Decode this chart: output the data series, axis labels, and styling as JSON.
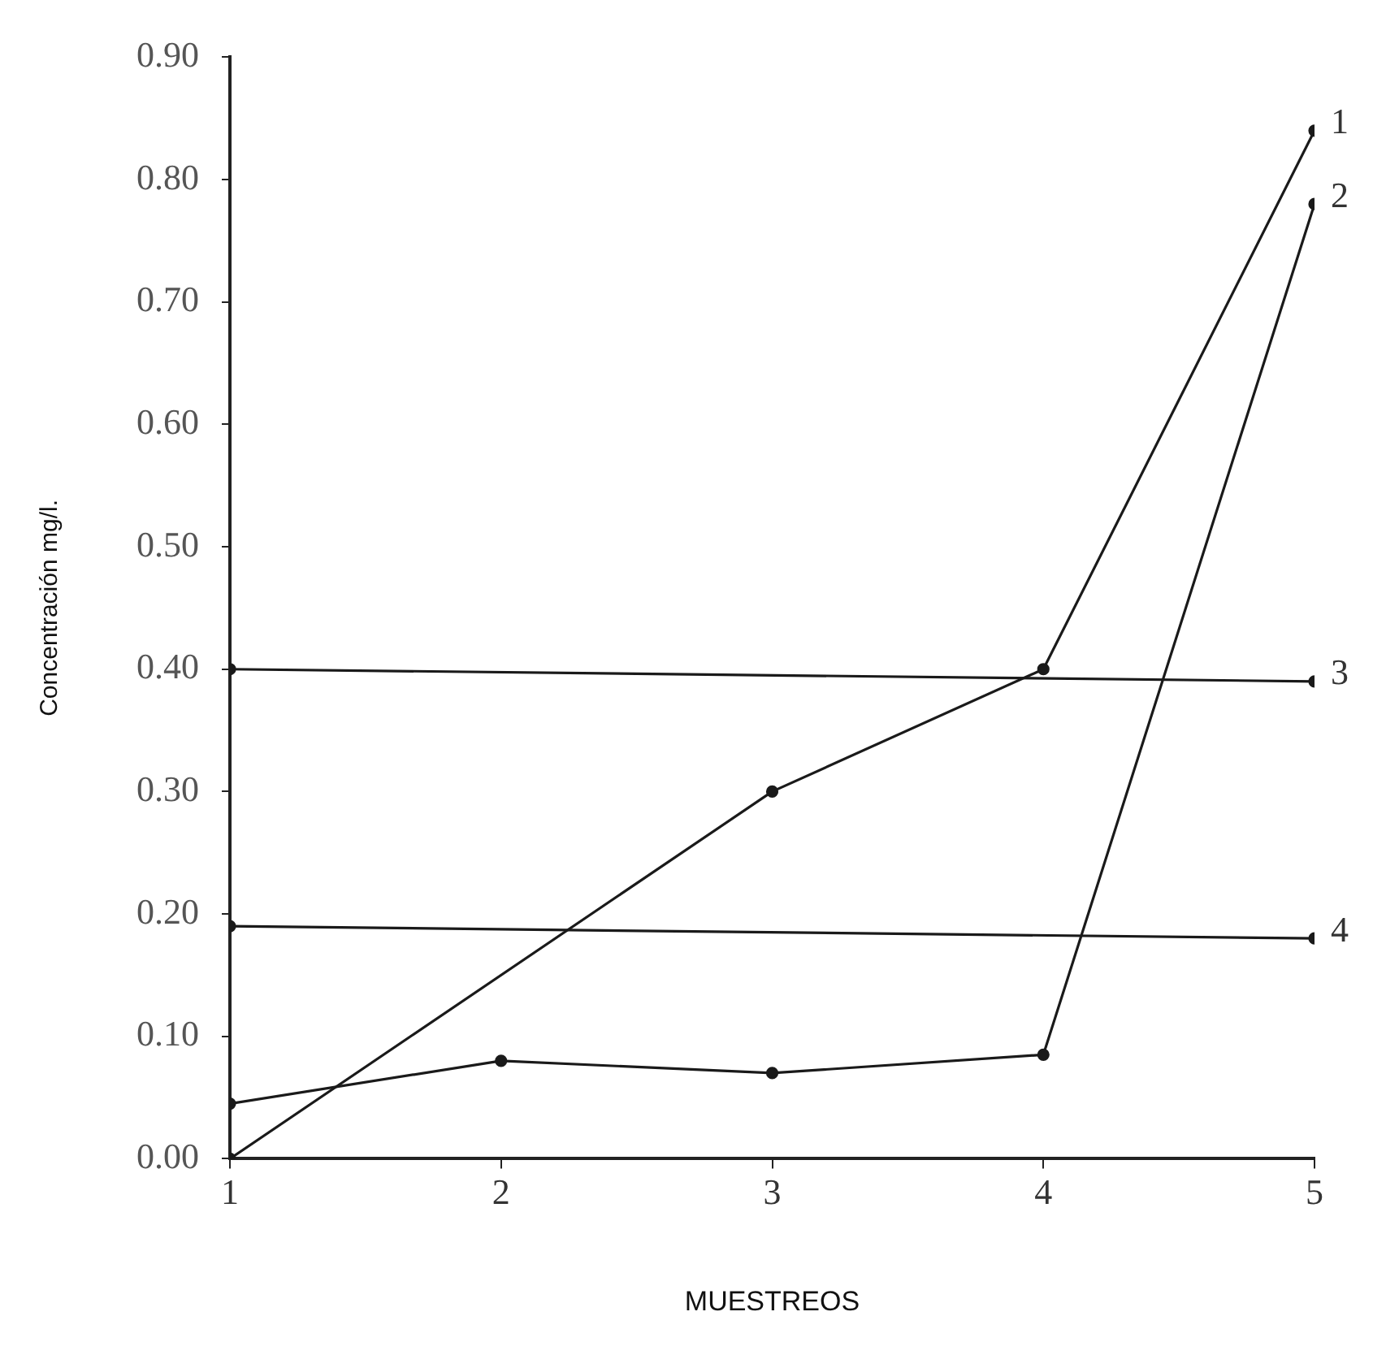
{
  "chart_data": {
    "type": "line",
    "xlabel": "MUESTREOS",
    "ylabel": "Concentración mg/l.",
    "xlim": [
      1,
      5
    ],
    "xticks": [
      1,
      2,
      3,
      4,
      5
    ],
    "ylim": [
      0,
      0.9
    ],
    "yticks": [
      {
        "value": 0,
        "label": "0.00"
      },
      {
        "value": 0.1,
        "label": "0.10"
      },
      {
        "value": 0.2,
        "label": "0.20"
      },
      {
        "value": 0.3,
        "label": "0.30"
      },
      {
        "value": 0.4,
        "label": "0.40"
      },
      {
        "value": 0.5,
        "label": "0.50"
      },
      {
        "value": 0.6,
        "label": "0.60"
      },
      {
        "value": 0.7,
        "label": "0.70"
      },
      {
        "value": 0.8,
        "label": "0.80"
      },
      {
        "value": 0.9,
        "label": "0.90"
      }
    ],
    "grid": false,
    "legend": false,
    "marker": "circle",
    "line_style": "solid",
    "series": [
      {
        "name": "1",
        "color": "#1a1a1a",
        "x": [
          1,
          3,
          4,
          5
        ],
        "values": [
          0,
          0.3,
          0.4,
          0.84
        ]
      },
      {
        "name": "2",
        "color": "#1a1a1a",
        "x": [
          1,
          2,
          3,
          4,
          5
        ],
        "values": [
          0.045,
          0.08,
          0.07,
          0.085,
          0.78
        ]
      },
      {
        "name": "3",
        "color": "#1a1a1a",
        "x": [
          1,
          5
        ],
        "values": [
          0.4,
          0.39
        ]
      },
      {
        "name": "4",
        "color": "#1a1a1a",
        "x": [
          1,
          5
        ],
        "values": [
          0.19,
          0.18
        ]
      }
    ]
  }
}
